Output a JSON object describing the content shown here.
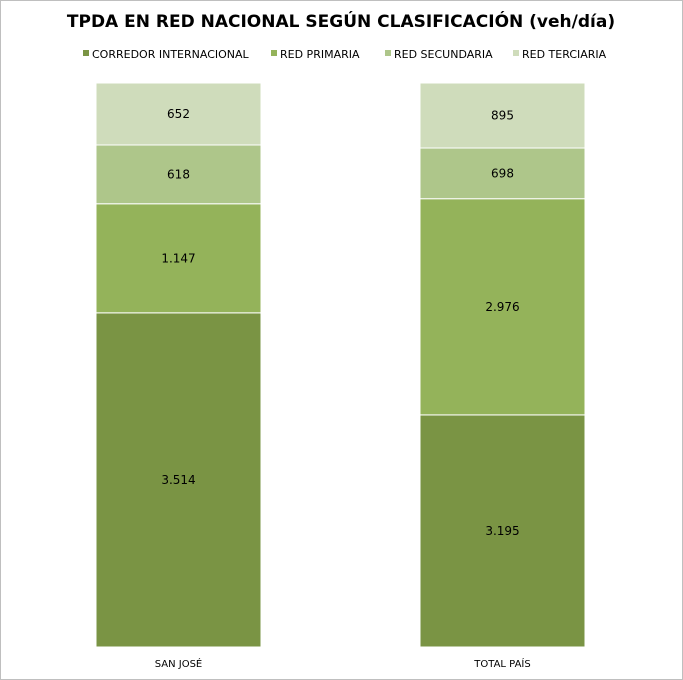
{
  "chart_data": {
    "type": "bar",
    "stacked": true,
    "normalized": true,
    "title": "TPDA EN RED NACIONAL SEGÚN CLASIFICACIÓN (veh/día)",
    "categories": [
      "SAN JOSÉ",
      "TOTAL PAÍS"
    ],
    "series": [
      {
        "name": "CORREDOR INTERNACIONAL",
        "values": [
          3514,
          3195
        ],
        "labels": [
          "3.514",
          "3.195"
        ],
        "color": "#7a9444"
      },
      {
        "name": "RED PRIMARIA",
        "values": [
          1147,
          2976
        ],
        "labels": [
          "1.147",
          "2.976"
        ],
        "color": "#94b35a"
      },
      {
        "name": "RED SECUNDARIA",
        "values": [
          618,
          698
        ],
        "labels": [
          "618",
          "698"
        ],
        "color": "#aec68a"
      },
      {
        "name": "RED TERCIARIA",
        "values": [
          652,
          895
        ],
        "labels": [
          "652",
          "895"
        ],
        "color": "#cfdcbb"
      }
    ],
    "legend_position": "top",
    "grid": false
  }
}
